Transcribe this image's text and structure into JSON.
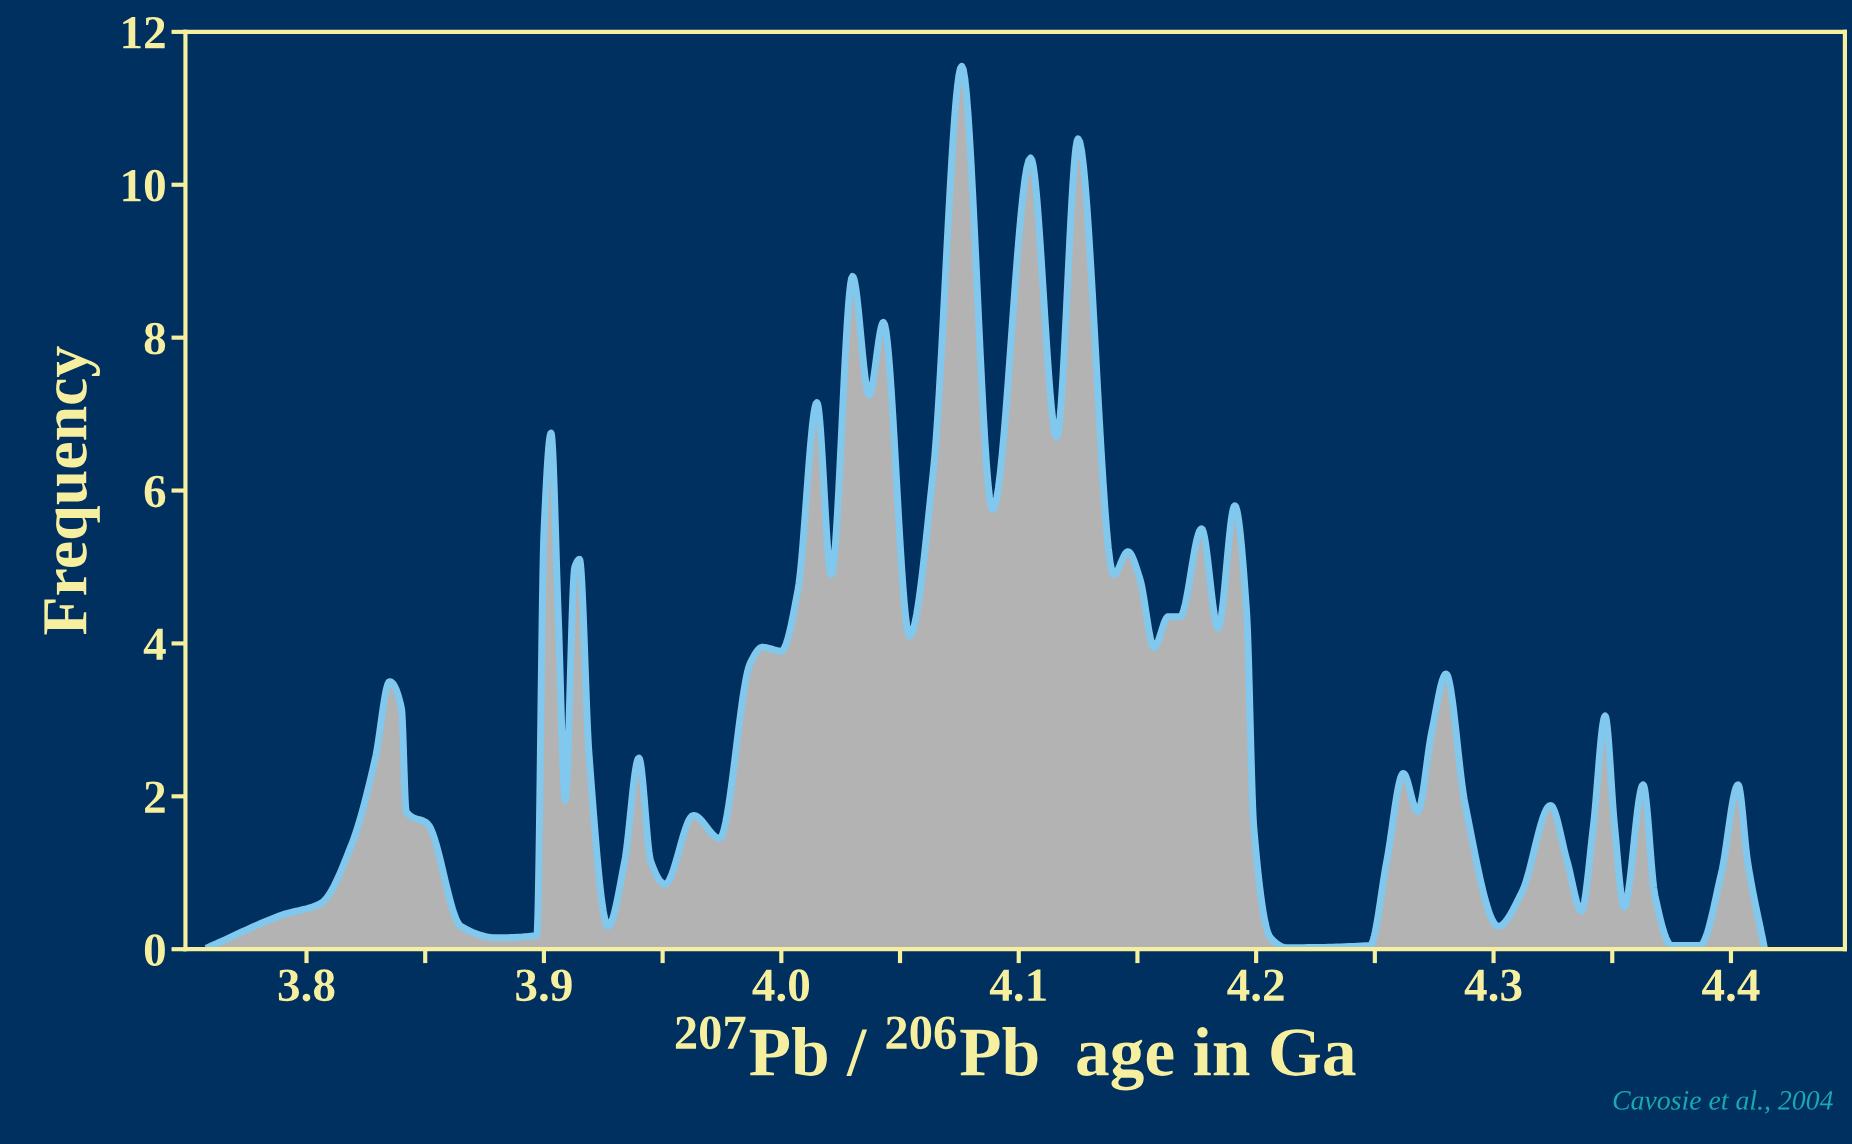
{
  "chart_data": {
    "type": "area",
    "xlabel": "$^{207}$Pb / $^{206}$Pb  age in Ga",
    "ylabel": "Frequency",
    "annotations": [
      "Cavosie et al., 2004"
    ],
    "xlim": [
      3.749,
      4.448
    ],
    "ylim": [
      0,
      12
    ],
    "xticks": [
      3.8,
      {
        "value": 3.85,
        "label": null
      },
      3.9,
      {
        "value": 3.95,
        "label": null
      },
      {
        "value": 4.0,
        "label": "4.0"
      },
      {
        "value": 4.05,
        "label": null
      },
      4.1,
      {
        "value": 4.15,
        "label": null
      },
      4.2,
      {
        "value": 4.25,
        "label": null
      },
      4.3,
      {
        "value": 4.35,
        "label": null
      },
      4.4
    ],
    "yticks": [
      0,
      2,
      4,
      6,
      8,
      10,
      12
    ],
    "grid": false,
    "marker": "none",
    "line_style": "solid",
    "series": [
      {
        "color": "#80c8ee",
        "x": [
          3.759,
          3.79,
          3.806,
          3.819,
          3.829,
          3.835,
          3.84,
          3.842,
          3.851,
          3.865,
          3.88,
          3.897,
          3.9,
          3.903,
          3.906,
          3.909,
          3.913,
          3.915,
          3.919,
          3.927,
          3.934,
          3.94,
          3.945,
          3.951,
          3.963,
          3.974,
          3.987,
          3.992,
          4.0,
          4.007,
          4.015,
          4.021,
          4.03,
          4.037,
          4.043,
          4.054,
          4.064,
          4.076,
          4.089,
          4.105,
          4.116,
          4.125,
          4.14,
          4.146,
          4.151,
          4.157,
          4.163,
          4.168,
          4.177,
          4.184,
          4.191,
          4.196,
          4.199,
          4.206,
          4.213,
          4.248,
          4.255,
          4.262,
          4.268,
          4.274,
          4.28,
          4.288,
          4.302,
          4.312,
          4.324,
          4.331,
          4.337,
          4.342,
          4.347,
          4.351,
          4.355,
          4.363,
          4.368,
          4.375,
          4.387,
          4.396,
          4.403,
          4.407,
          4.414
        ],
        "values": [
          0.03,
          0.45,
          0.6,
          1.37,
          2.5,
          3.5,
          3.15,
          1.8,
          1.64,
          0.3,
          0.15,
          0.18,
          5.45,
          6.75,
          4.4,
          1.95,
          5.0,
          5.1,
          2.55,
          0.3,
          1.15,
          2.5,
          1.15,
          0.85,
          1.75,
          1.45,
          3.75,
          3.95,
          3.9,
          4.7,
          7.15,
          4.9,
          8.8,
          7.25,
          8.2,
          4.1,
          6.25,
          11.55,
          5.75,
          10.35,
          6.7,
          10.6,
          4.9,
          5.2,
          4.85,
          3.95,
          4.35,
          4.35,
          5.5,
          4.2,
          5.8,
          4.4,
          1.6,
          0.15,
          0.02,
          0.05,
          1.15,
          2.3,
          1.8,
          2.85,
          3.6,
          1.9,
          0.3,
          0.75,
          1.88,
          1.15,
          0.5,
          1.6,
          3.05,
          1.6,
          0.55,
          2.15,
          0.7,
          0.05,
          0.05,
          1.0,
          2.15,
          1.15,
          0.03
        ]
      }
    ]
  }
}
